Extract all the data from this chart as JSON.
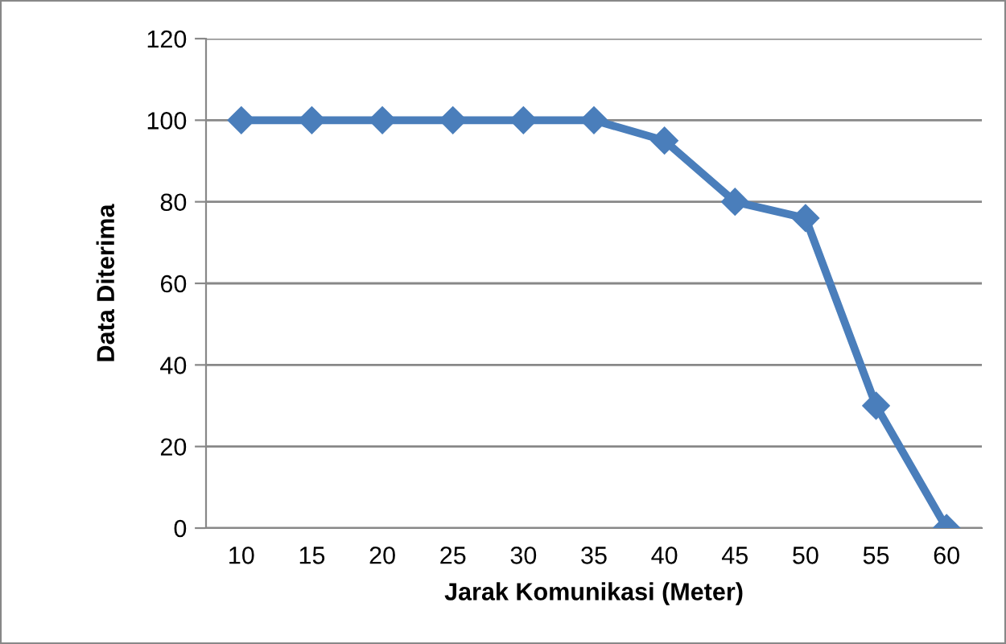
{
  "chart_data": {
    "type": "line",
    "xlabel": "Jarak Komunikasi (Meter)",
    "ylabel": "Data Diterima",
    "categories": [
      "10",
      "15",
      "20",
      "25",
      "30",
      "35",
      "40",
      "45",
      "50",
      "55",
      "60"
    ],
    "values": [
      100,
      100,
      100,
      100,
      100,
      100,
      95,
      80,
      76,
      30,
      0
    ],
    "color": "#4a7ebb",
    "marker": "diamond",
    "line_style": "solid",
    "ylim": [
      0,
      120
    ],
    "yticks": [
      0,
      20,
      40,
      60,
      80,
      100,
      120
    ],
    "grid": "y",
    "legend": false
  }
}
